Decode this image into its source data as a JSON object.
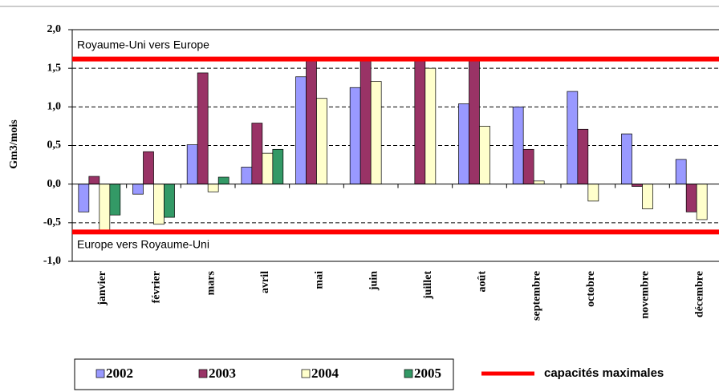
{
  "chart_data": {
    "type": "bar",
    "y_label": "Gm3/mois",
    "categories": [
      "janvier",
      "février",
      "mars",
      "avril",
      "mai",
      "juin",
      "juillet",
      "août",
      "septembre",
      "octobre",
      "novembre",
      "décembre"
    ],
    "series": [
      {
        "name": "2002",
        "color": "#9999ff",
        "values": [
          -0.36,
          -0.13,
          0.51,
          0.22,
          1.39,
          1.25,
          null,
          1.04,
          1.0,
          1.2,
          0.65,
          0.32
        ]
      },
      {
        "name": "2003",
        "color": "#993366",
        "values": [
          0.1,
          0.42,
          1.44,
          0.79,
          1.6,
          1.62,
          1.62,
          1.62,
          0.45,
          0.71,
          -0.03,
          -0.36
        ]
      },
      {
        "name": "2004",
        "color": "#ffffcc",
        "values": [
          -0.6,
          -0.52,
          -0.1,
          0.4,
          1.11,
          1.33,
          1.5,
          0.75,
          0.04,
          -0.22,
          -0.32,
          -0.46
        ]
      },
      {
        "name": "2005",
        "color": "#339966",
        "values": [
          -0.4,
          -0.43,
          0.09,
          0.45,
          null,
          null,
          null,
          null,
          null,
          null,
          null,
          null
        ]
      }
    ],
    "capacity": {
      "name": "capacités maximales",
      "color": "#ff0000",
      "values": [
        1.62,
        -0.62
      ]
    },
    "annotations": [
      "Royaume-Uni vers Europe",
      "Europe vers Royaume-Uni"
    ],
    "ylim": [
      -1.0,
      2.0
    ],
    "yticks": [
      {
        "value": -1.0,
        "label": "-1,0"
      },
      {
        "value": -0.5,
        "label": "-0,5"
      },
      {
        "value": 0,
        "label": "0,0"
      },
      {
        "value": 0.5,
        "label": "0,5"
      },
      {
        "value": 1.0,
        "label": "1,0"
      },
      {
        "value": 1.5,
        "label": "1,5"
      },
      {
        "value": 2.0,
        "label": "2,0"
      }
    ],
    "grid": true
  }
}
